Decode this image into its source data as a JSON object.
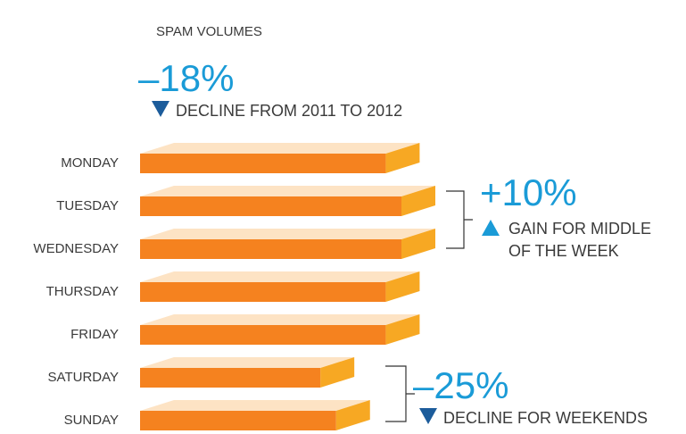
{
  "chart_data": {
    "type": "bar3d",
    "title": "SPAM VOLUMES",
    "categories": [
      "MONDAY",
      "TUESDAY",
      "WEDNESDAY",
      "THURSDAY",
      "FRIDAY",
      "SATURDAY",
      "SUNDAY"
    ],
    "values": [
      94,
      100,
      100,
      94,
      94,
      69,
      75
    ],
    "color": "#f5821f",
    "annotations": [
      {
        "value": "–18%",
        "text": [
          "DECLINE FROM 2011 TO 2012"
        ]
      },
      {
        "value": "+10%",
        "text": [
          "GAIN FOR MIDDLE",
          "OF THE WEEK"
        ]
      },
      {
        "value": "–25%",
        "text": [
          "DECLINE FOR WEEKENDS"
        ]
      }
    ]
  }
}
